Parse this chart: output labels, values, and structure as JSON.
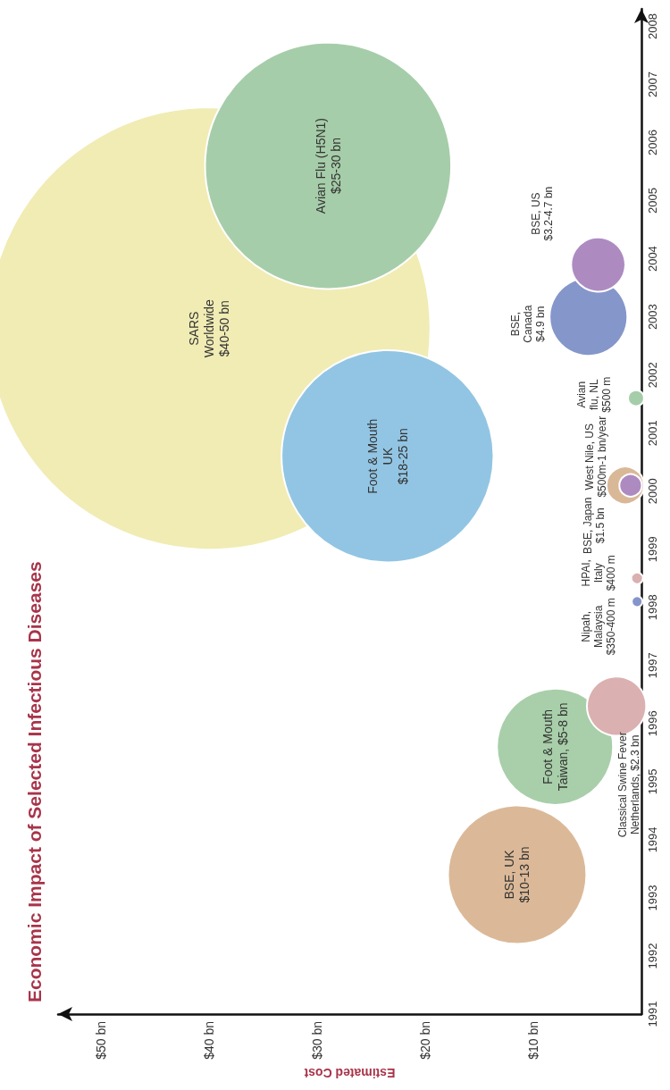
{
  "chart_data": {
    "type": "bubble",
    "orientation": "horizontal",
    "title": "Economic Impact of Selected Infectious Diseases",
    "xlabel": "Estimated Cost",
    "x": [
      2002.8,
      2005.6,
      2000.6,
      1993.4,
      1995.6,
      1996.3,
      1998.1,
      1998.5,
      2000.1,
      2000.1,
      2001.6,
      2003.0,
      2003.9
    ],
    "values": [
      40,
      29,
      23.5,
      11.5,
      8,
      2.3,
      0.4,
      0.4,
      1.5,
      1,
      0.5,
      4.9,
      4
    ],
    "sizes": [
      1,
      0.31,
      0.23,
      0.098,
      0.069,
      0.018,
      0.0006,
      0.0007,
      0.0072,
      0.0026,
      0.0013,
      0.031,
      0.015
    ],
    "colors": [
      "#f0ecb4",
      "#a6cda9",
      "#92c5e3",
      "#dbb998",
      "#a8cfa9",
      "#dbb0b0",
      "#8595cb",
      "#dbb0b0",
      "#d9b898",
      "#ad8bc1",
      "#a6cda9",
      "#8596ca",
      "#ad8bc1"
    ],
    "value_labels": [
      "SARS\nWorldwide\n$40-50 bn",
      "Avian Flu (H5N1)\n$25-30 bn",
      "Foot & Mouth\nUK\n$18-25 bn",
      "BSE, UK\n$10-13 bn",
      "Foot & Mouth\nTaiwan, $5-8 bn",
      "Classical Swine Fever\nNetherlands, $2.3 bn",
      "Nipah,\nMalaysia\n$350-400 m",
      "HPAI,\nItaly\n$400 m",
      "BSE, Japan\n$1.5 bn",
      "West Nile, US\n$500m-1 bn/year",
      "Avian\nflu, NL\n$500 m",
      "BSE,\nCanada\n$4.9 bn",
      "BSE, US\n$3.2-4.7 bn"
    ],
    "xlim": [
      54,
      0
    ],
    "xticks": [
      {
        "value": 10,
        "label": "$10 bn"
      },
      {
        "value": 20,
        "label": "$20 bn"
      },
      {
        "value": 30,
        "label": "$30 bn"
      },
      {
        "value": 40,
        "label": "$40 bn"
      },
      {
        "value": 50,
        "label": "$50 bn"
      }
    ],
    "ylim": [
      1991,
      2008.3
    ],
    "yticks": [
      1991,
      1992,
      1993,
      1994,
      1995,
      1996,
      1997,
      1998,
      1999,
      2000,
      2001,
      2002,
      2003,
      2004,
      2005,
      2006,
      2007,
      2008
    ],
    "grid": false
  }
}
